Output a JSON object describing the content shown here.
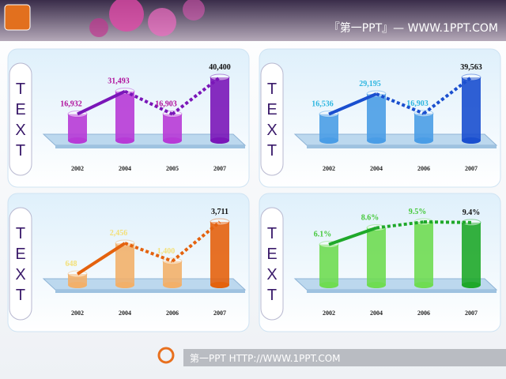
{
  "header": {
    "title": "『第一PPT』— WWW.1PPT.COM"
  },
  "footer": {
    "text": "第一PPT HTTP://WWW.1PPT.COM"
  },
  "chart_data": [
    {
      "type": "bar",
      "label": "TEXT",
      "categories": [
        "2002",
        "2004",
        "2005",
        "2007"
      ],
      "values": [
        16932,
        31493,
        16903,
        40400
      ],
      "value_labels": [
        "16,932",
        "31,493",
        "16,903",
        "40,400"
      ],
      "color": "#b73ad6",
      "last_color": "#7a16b8",
      "label_color": "#b0109c"
    },
    {
      "type": "bar",
      "label": "TEXT",
      "categories": [
        "2002",
        "2004",
        "2006",
        "2007"
      ],
      "values": [
        16536,
        29195,
        16903,
        39563
      ],
      "value_labels": [
        "16,536",
        "29,195",
        "16,903",
        "39,563"
      ],
      "color": "#4a9de6",
      "last_color": "#1a4fcf",
      "label_color": "#2fb6e0"
    },
    {
      "type": "bar",
      "label": "TEXT",
      "categories": [
        "2002",
        "2004",
        "2006",
        "2007"
      ],
      "values": [
        648,
        2456,
        1400,
        3711
      ],
      "value_labels": [
        "648",
        "2,456",
        "1,400",
        "3,711"
      ],
      "color": "#f2b06a",
      "last_color": "#e4620e",
      "label_color": "#f3e07a"
    },
    {
      "type": "bar",
      "label": "TEXT",
      "categories": [
        "2002",
        "2004",
        "2006",
        "2007"
      ],
      "values": [
        6.1,
        8.6,
        9.5,
        9.4
      ],
      "value_labels": [
        "6.1%",
        "8.6%",
        "9.5%",
        "9.4%"
      ],
      "color": "#6fdc52",
      "last_color": "#1fa82a",
      "label_color": "#44c83a"
    }
  ]
}
